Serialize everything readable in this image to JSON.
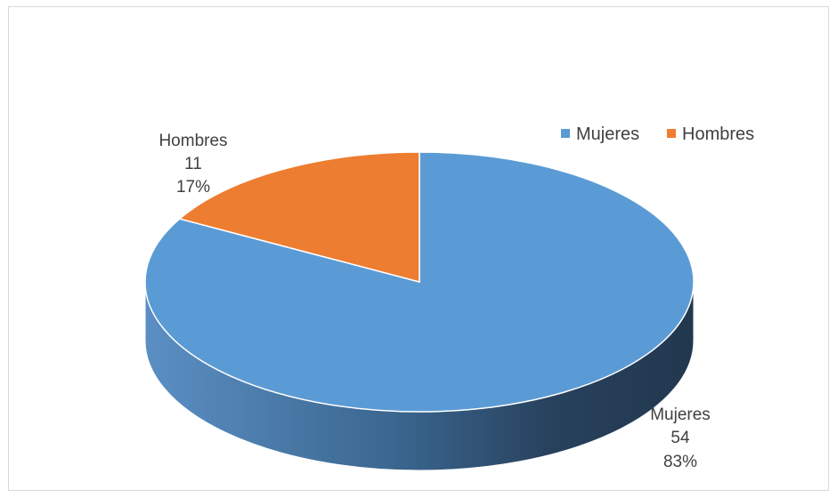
{
  "chart_data": {
    "type": "pie",
    "title": "",
    "categories": [
      "Mujeres",
      "Hombres"
    ],
    "values": [
      54,
      11
    ],
    "percent_labels": [
      "83%",
      "17%"
    ],
    "colors": [
      "#5b9bd5",
      "#ed7d31"
    ],
    "side_color": "#3e6f9c",
    "legend": {
      "position": "top-right",
      "entries": [
        "Mujeres",
        "Hombres"
      ]
    }
  }
}
